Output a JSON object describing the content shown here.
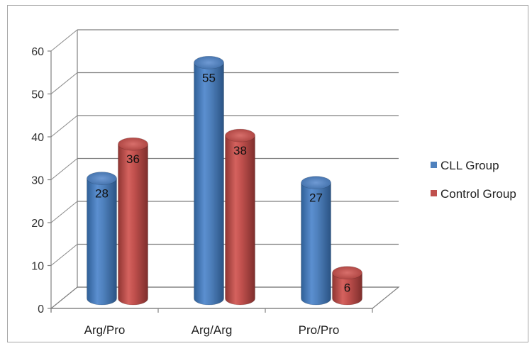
{
  "chart_data": {
    "type": "bar",
    "categories": [
      "Arg/Pro",
      "Arg/Arg",
      "Pro/Pro"
    ],
    "series": [
      {
        "name": "CLL Group",
        "values": [
          28,
          55,
          27
        ],
        "color": "#4f81bd"
      },
      {
        "name": "Control Group",
        "values": [
          36,
          38,
          6
        ],
        "color": "#c0504d"
      }
    ],
    "ylim": [
      0,
      60
    ],
    "yticks": [
      "0",
      "10",
      "20",
      "30",
      "40",
      "50",
      "60"
    ],
    "grid": true,
    "legend_position": "right",
    "bar_shape": "3d-cylinder",
    "data_labels": true,
    "title": "",
    "xlabel": "",
    "ylabel": ""
  }
}
